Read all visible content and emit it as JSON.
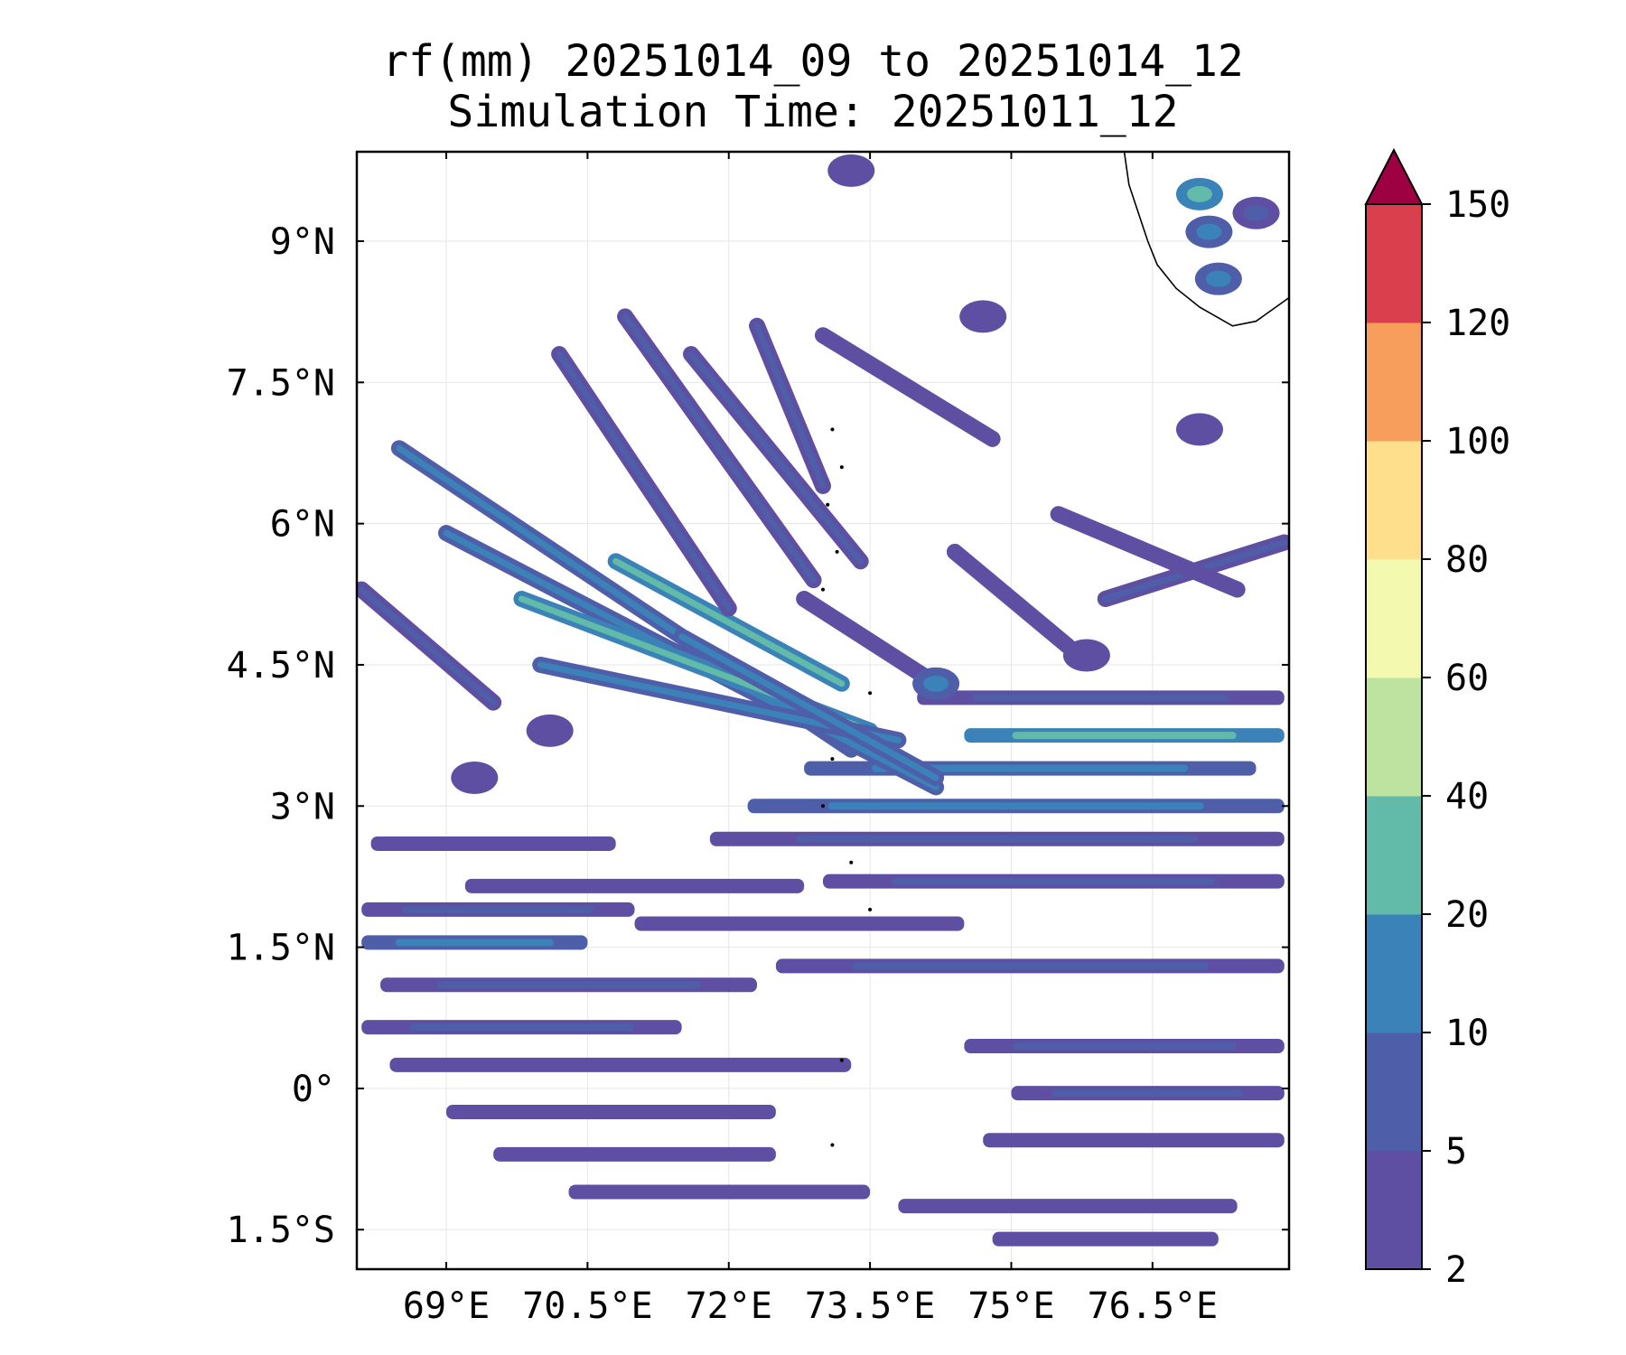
{
  "chart_data": {
    "type": "heatmap",
    "title": "rf(mm) 20251014_09 to 20251014_12",
    "subtitle": "Simulation Time: 20251011_12",
    "variable": "rf(mm)",
    "x_ticks": [
      {
        "value": 69.0,
        "label": "69°E"
      },
      {
        "value": 70.5,
        "label": "70.5°E"
      },
      {
        "value": 72.0,
        "label": "72°E"
      },
      {
        "value": 73.5,
        "label": "73.5°E"
      },
      {
        "value": 75.0,
        "label": "75°E"
      },
      {
        "value": 76.5,
        "label": "76.5°E"
      }
    ],
    "y_ticks": [
      {
        "value": 9.0,
        "label": "9°N"
      },
      {
        "value": 7.5,
        "label": "7.5°N"
      },
      {
        "value": 6.0,
        "label": "6°N"
      },
      {
        "value": 4.5,
        "label": "4.5°N"
      },
      {
        "value": 3.0,
        "label": "3°N"
      },
      {
        "value": 1.5,
        "label": "1.5°N"
      },
      {
        "value": 0.0,
        "label": "0°"
      },
      {
        "value": -1.5,
        "label": "1.5°S"
      }
    ],
    "xlim": [
      68.05,
      77.95
    ],
    "ylim": [
      -1.92,
      9.95
    ],
    "grid": true,
    "colorbar": {
      "position": "right",
      "extend": "max",
      "levels": [
        2,
        5,
        10,
        20,
        40,
        60,
        80,
        100,
        120,
        150
      ],
      "labels": [
        "2",
        "5",
        "10",
        "20",
        "40",
        "60",
        "80",
        "100",
        "120",
        "150"
      ],
      "colors": [
        "#5e4fa2",
        "#4e5ea8",
        "#3a82b8",
        "#62bba8",
        "#bee3a1",
        "#f4f9b0",
        "#fddf8c",
        "#f89e5c",
        "#d93f4d"
      ],
      "extend_color": "#9e0142"
    },
    "rain_bands": [
      {
        "lon": [
          68.1,
          71.0
        ],
        "lat": 1.9,
        "level": 1
      },
      {
        "lon": [
          68.1,
          70.5
        ],
        "lat": 1.55,
        "level": 2
      },
      {
        "lon": [
          68.3,
          72.3
        ],
        "lat": 1.1,
        "level": 1
      },
      {
        "lon": [
          68.1,
          71.5
        ],
        "lat": 0.65,
        "level": 1
      },
      {
        "lon": [
          68.4,
          73.3
        ],
        "lat": 0.25,
        "level": 0
      },
      {
        "lon": [
          69.2,
          72.8
        ],
        "lat": 2.15,
        "level": 0
      },
      {
        "lon": [
          71.0,
          74.5
        ],
        "lat": 1.75,
        "level": 0
      },
      {
        "lon": [
          72.5,
          77.9
        ],
        "lat": 1.3,
        "level": 1
      },
      {
        "lon": [
          73.0,
          77.9
        ],
        "lat": 2.2,
        "level": 1
      },
      {
        "lon": [
          74.5,
          77.9
        ],
        "lat": 0.45,
        "level": 1
      },
      {
        "lon": [
          75.0,
          77.9
        ],
        "lat": -0.05,
        "level": 1
      },
      {
        "lon": [
          74.7,
          77.9
        ],
        "lat": -0.55,
        "level": 0
      },
      {
        "lon": [
          69.5,
          72.5
        ],
        "lat": -0.7,
        "level": 0
      },
      {
        "lon": [
          70.3,
          73.5
        ],
        "lat": -1.1,
        "level": 0
      },
      {
        "lon": [
          73.8,
          77.4
        ],
        "lat": -1.25,
        "level": 0
      },
      {
        "lon": [
          74.8,
          77.2
        ],
        "lat": -1.6,
        "level": 0
      },
      {
        "lon": [
          71.8,
          77.9
        ],
        "lat": 2.65,
        "level": 1
      },
      {
        "lon": [
          72.2,
          77.9
        ],
        "lat": 3.0,
        "level": 2
      },
      {
        "lon": [
          72.8,
          77.6
        ],
        "lat": 3.4,
        "level": 2
      },
      {
        "lon": [
          74.5,
          77.9
        ],
        "lat": 3.75,
        "level": 3
      },
      {
        "lon": [
          74.0,
          77.9
        ],
        "lat": 4.15,
        "level": 1
      },
      {
        "lon": [
          68.2,
          70.8
        ],
        "lat": 2.6,
        "level": 0
      },
      {
        "lon": [
          69.0,
          72.5
        ],
        "lat": -0.25,
        "level": 0
      }
    ],
    "rain_streaks": [
      {
        "lon": [
          68.5,
          73.3
        ],
        "lat": [
          6.8,
          3.6
        ],
        "level": 2
      },
      {
        "lon": [
          69.0,
          74.2
        ],
        "lat": [
          5.9,
          3.2
        ],
        "level": 2
      },
      {
        "lon": [
          69.8,
          73.5
        ],
        "lat": [
          5.2,
          3.8
        ],
        "level": 3
      },
      {
        "lon": [
          70.0,
          73.8
        ],
        "lat": [
          4.5,
          3.7
        ],
        "level": 2
      },
      {
        "lon": [
          70.8,
          73.2
        ],
        "lat": [
          5.6,
          4.3
        ],
        "level": 3
      },
      {
        "lon": [
          71.5,
          74.2
        ],
        "lat": [
          4.8,
          3.3
        ],
        "level": 2
      },
      {
        "lon": [
          70.2,
          72.0
        ],
        "lat": [
          7.8,
          5.1
        ],
        "level": 1
      },
      {
        "lon": [
          70.9,
          72.9
        ],
        "lat": [
          8.2,
          5.4
        ],
        "level": 1
      },
      {
        "lon": [
          71.6,
          73.4
        ],
        "lat": [
          7.8,
          5.6
        ],
        "level": 1
      },
      {
        "lon": [
          72.3,
          73.0
        ],
        "lat": [
          8.1,
          6.4
        ],
        "level": 1
      },
      {
        "lon": [
          73.0,
          74.8
        ],
        "lat": [
          8.0,
          6.9
        ],
        "level": 0
      },
      {
        "lon": [
          74.4,
          75.6
        ],
        "lat": [
          5.7,
          4.7
        ],
        "level": 0
      },
      {
        "lon": [
          76.0,
          77.9
        ],
        "lat": [
          5.2,
          5.8
        ],
        "level": 1
      },
      {
        "lon": [
          75.5,
          77.4
        ],
        "lat": [
          6.1,
          5.3
        ],
        "level": 0
      },
      {
        "lon": [
          68.1,
          69.5
        ],
        "lat": [
          5.3,
          4.1
        ],
        "level": 1
      },
      {
        "lon": [
          72.8,
          74.2
        ],
        "lat": [
          5.2,
          4.3
        ],
        "level": 0
      }
    ],
    "rain_patches": [
      {
        "lon": 77.1,
        "lat": 9.1,
        "level": 2
      },
      {
        "lon": 77.2,
        "lat": 8.6,
        "level": 2
      },
      {
        "lon": 77.0,
        "lat": 9.5,
        "level": 3
      },
      {
        "lon": 77.6,
        "lat": 9.3,
        "level": 1
      },
      {
        "lon": 73.3,
        "lat": 9.75,
        "level": 0
      },
      {
        "lon": 74.7,
        "lat": 8.2,
        "level": 0
      },
      {
        "lon": 74.2,
        "lat": 4.3,
        "level": 2
      },
      {
        "lon": 75.8,
        "lat": 4.6,
        "level": 0
      },
      {
        "lon": 77.0,
        "lat": 7.0,
        "level": 0
      },
      {
        "lon": 69.3,
        "lat": 3.3,
        "level": 0
      },
      {
        "lon": 70.1,
        "lat": 3.8,
        "level": 0
      }
    ],
    "islands": [
      {
        "lon": 73.1,
        "lat": 7.0
      },
      {
        "lon": 73.2,
        "lat": 6.6
      },
      {
        "lon": 73.05,
        "lat": 6.2
      },
      {
        "lon": 73.15,
        "lat": 5.7
      },
      {
        "lon": 73.0,
        "lat": 5.3
      },
      {
        "lon": 73.5,
        "lat": 4.2
      },
      {
        "lon": 73.1,
        "lat": 3.5
      },
      {
        "lon": 73.0,
        "lat": 3.0
      },
      {
        "lon": 73.3,
        "lat": 2.4
      },
      {
        "lon": 73.5,
        "lat": 1.9
      },
      {
        "lon": 73.2,
        "lat": 0.3
      },
      {
        "lon": 73.1,
        "lat": -0.6
      }
    ],
    "coastline": [
      [
        76.2,
        9.95
      ],
      [
        76.25,
        9.6
      ],
      [
        76.35,
        9.3
      ],
      [
        76.45,
        9.0
      ],
      [
        76.55,
        8.75
      ],
      [
        76.75,
        8.5
      ],
      [
        77.0,
        8.3
      ],
      [
        77.35,
        8.1
      ],
      [
        77.6,
        8.15
      ],
      [
        77.95,
        8.4
      ]
    ]
  }
}
